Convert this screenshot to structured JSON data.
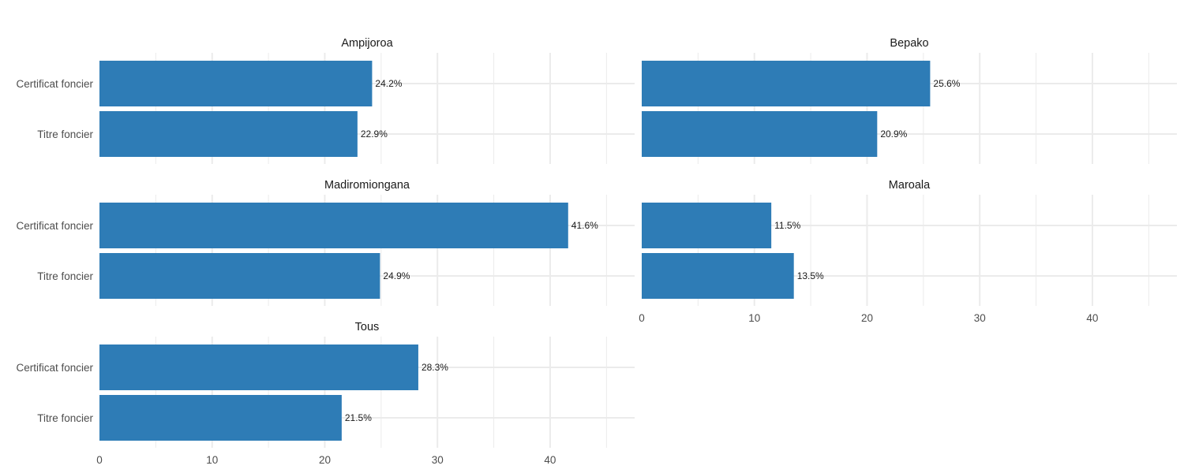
{
  "chart_data": {
    "type": "bar",
    "orientation": "horizontal",
    "layout": "facet-wrap",
    "categories": [
      "Certificat foncier",
      "Titre foncier"
    ],
    "xlim": [
      0,
      47.5
    ],
    "xticks": [
      0,
      10,
      20,
      30,
      40
    ],
    "grid": true,
    "legend": "none",
    "bar_color": "#2E7CB6",
    "grid_color": "#EBEBEB",
    "panels": [
      {
        "title": "Ampijoroa",
        "values": [
          24.2,
          22.9
        ],
        "labels": [
          "24.2%",
          "22.9%"
        ]
      },
      {
        "title": "Bepako",
        "values": [
          25.6,
          20.9
        ],
        "labels": [
          "25.6%",
          "20.9%"
        ]
      },
      {
        "title": "Madiromiongana",
        "values": [
          41.6,
          24.9
        ],
        "labels": [
          "41.6%",
          "24.9%"
        ]
      },
      {
        "title": "Maroala",
        "values": [
          11.5,
          13.5
        ],
        "labels": [
          "11.5%",
          "13.5%"
        ]
      },
      {
        "title": "Tous",
        "values": [
          28.3,
          21.5
        ],
        "labels": [
          "28.3%",
          "21.5%"
        ]
      }
    ]
  }
}
